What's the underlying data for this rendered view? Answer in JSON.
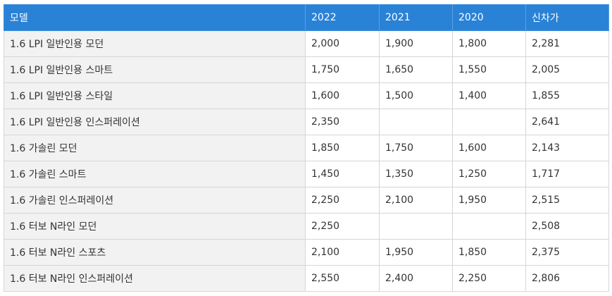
{
  "table": {
    "headers": [
      "모델",
      "2022",
      "2021",
      "2020",
      "신차가"
    ],
    "rows": [
      [
        "1.6 LPI 일반인용 모던",
        "2,000",
        "1,900",
        "1,800",
        "2,281"
      ],
      [
        "1.6 LPI 일반인용 스마트",
        "1,750",
        "1,650",
        "1,550",
        "2,005"
      ],
      [
        "1.6 LPI 일반인용 스타일",
        "1,600",
        "1,500",
        "1,400",
        "1,855"
      ],
      [
        "1.6 LPI 일반인용 인스퍼레이션",
        "2,350",
        "",
        "",
        "2,641"
      ],
      [
        "1.6 가솔린 모던",
        "1,850",
        "1,750",
        "1,600",
        "2,143"
      ],
      [
        "1.6 가솔린 스마트",
        "1,450",
        "1,350",
        "1,250",
        "1,717"
      ],
      [
        "1.6 가솔린 인스퍼레이션",
        "2,250",
        "2,100",
        "1,950",
        "2,515"
      ],
      [
        "1.6 터보 N라인 모던",
        "2,250",
        "",
        "",
        "2,508"
      ],
      [
        "1.6 터보 N라인 스포츠",
        "2,100",
        "1,950",
        "1,850",
        "2,375"
      ],
      [
        "1.6 터보 N라인 인스퍼레이션",
        "2,550",
        "2,400",
        "2,250",
        "2,806"
      ]
    ]
  },
  "colors": {
    "header_bg": "#2a82d6",
    "header_text": "#ffffff",
    "model_cell_bg": "#f2f2f2",
    "border": "#d6d6d6"
  }
}
